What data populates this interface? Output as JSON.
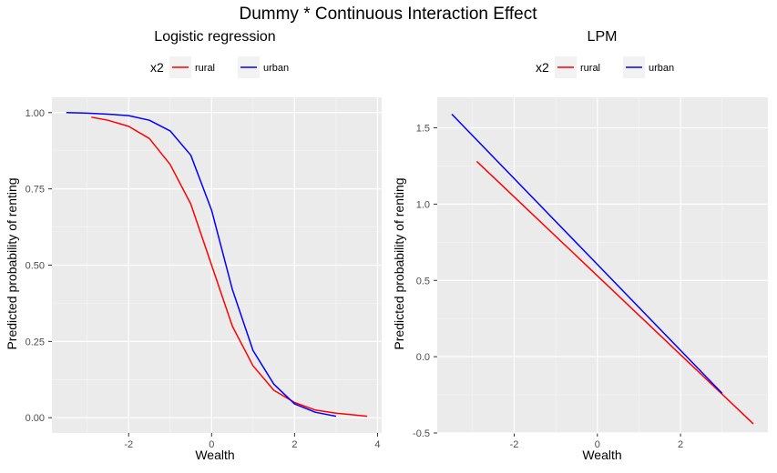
{
  "title": "Dummy * Continuous Interaction Effect",
  "chart_data": [
    {
      "type": "line",
      "title": "Logistic regression",
      "xlabel": "Wealth",
      "ylabel": "Predicted probability of renting",
      "xlim": [
        -3.85,
        4.1
      ],
      "ylim": [
        -0.05,
        1.05
      ],
      "x_ticks": [
        -2,
        0,
        2,
        4
      ],
      "x_tick_labels": [
        "-2",
        "0",
        "2",
        "4"
      ],
      "y_ticks": [
        0,
        0.25,
        0.5,
        0.75,
        1
      ],
      "y_tick_labels": [
        "0.00",
        "0.25",
        "0.50",
        "0.75",
        "1.00"
      ],
      "grid": true,
      "legend": {
        "title": "x2",
        "position": "top"
      },
      "series": [
        {
          "name": "rural",
          "color": "#ff0000",
          "x": [
            -2.9,
            -2.5,
            -2.0,
            -1.5,
            -1.0,
            -0.5,
            0.0,
            0.5,
            1.0,
            1.5,
            2.0,
            2.5,
            3.0,
            3.75
          ],
          "y": [
            0.985,
            0.975,
            0.955,
            0.915,
            0.83,
            0.7,
            0.5,
            0.3,
            0.17,
            0.09,
            0.05,
            0.025,
            0.015,
            0.005
          ]
        },
        {
          "name": "urban",
          "color": "#0000ff",
          "x": [
            -3.5,
            -3.0,
            -2.5,
            -2.0,
            -1.5,
            -1.0,
            -0.5,
            0.0,
            0.5,
            1.0,
            1.5,
            2.0,
            2.5,
            3.0
          ],
          "y": [
            1.0,
            0.998,
            0.995,
            0.99,
            0.975,
            0.94,
            0.86,
            0.68,
            0.42,
            0.22,
            0.11,
            0.045,
            0.018,
            0.005
          ]
        }
      ]
    },
    {
      "type": "line",
      "title": "LPM",
      "xlabel": "Wealth",
      "ylabel": "Predicted probability of renting",
      "xlim": [
        -3.85,
        4.1
      ],
      "ylim": [
        -0.5,
        1.7
      ],
      "x_ticks": [
        -2,
        0,
        2
      ],
      "x_tick_labels": [
        "-2",
        "0",
        "2"
      ],
      "y_ticks": [
        -0.5,
        0,
        0.5,
        1.0,
        1.5
      ],
      "y_tick_labels": [
        "-0.5",
        "0.0",
        "0.5",
        "1.0",
        "1.5"
      ],
      "grid": true,
      "legend": {
        "title": "x2",
        "position": "top"
      },
      "series": [
        {
          "name": "rural",
          "color": "#ff0000",
          "x": [
            -2.9,
            3.75
          ],
          "y": [
            1.28,
            -0.44
          ]
        },
        {
          "name": "urban",
          "color": "#0000ff",
          "x": [
            -3.5,
            3.0
          ],
          "y": [
            1.59,
            -0.24
          ]
        }
      ]
    }
  ]
}
